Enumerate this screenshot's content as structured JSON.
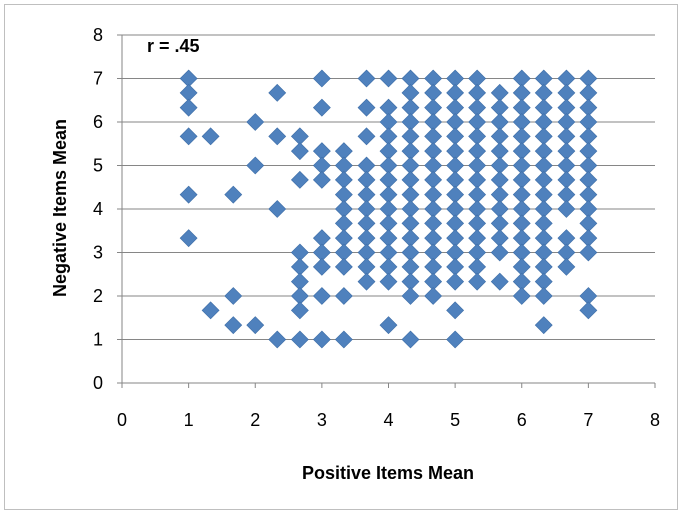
{
  "chart_data": {
    "type": "scatter",
    "title": "",
    "annotation": "r = .45",
    "xlabel": "Positive Items Mean",
    "ylabel": "Negative Items Mean",
    "xlim": [
      0,
      8
    ],
    "ylim": [
      0,
      8
    ],
    "x_ticks": [
      "0",
      "1",
      "2",
      "3",
      "4",
      "5",
      "6",
      "7",
      "8"
    ],
    "y_ticks": [
      "0",
      "1",
      "2",
      "3",
      "4",
      "5",
      "6",
      "7",
      "8"
    ],
    "grid": "horizontal",
    "legend": "none",
    "marker": "diamond",
    "colors": {
      "marker": "#4f81bd",
      "grid": "#868686",
      "axis": "#868686"
    },
    "points": [
      [
        1,
        7
      ],
      [
        1,
        6.67
      ],
      [
        1,
        6.33
      ],
      [
        1,
        5.67
      ],
      [
        1,
        4.33
      ],
      [
        1,
        3.33
      ],
      [
        1.33,
        5.67
      ],
      [
        1.33,
        1.67
      ],
      [
        1.67,
        4.33
      ],
      [
        1.67,
        2
      ],
      [
        1.67,
        1.33
      ],
      [
        2,
        6
      ],
      [
        2,
        5
      ],
      [
        2,
        1.33
      ],
      [
        2.33,
        6.67
      ],
      [
        2.33,
        5.67
      ],
      [
        2.33,
        4
      ],
      [
        2.33,
        1
      ],
      [
        2.67,
        5.67
      ],
      [
        2.67,
        5.33
      ],
      [
        2.67,
        4.67
      ],
      [
        2.67,
        3
      ],
      [
        2.67,
        2.67
      ],
      [
        2.67,
        2.33
      ],
      [
        2.67,
        2
      ],
      [
        2.67,
        1.67
      ],
      [
        2.67,
        1
      ],
      [
        3,
        7
      ],
      [
        3,
        6.33
      ],
      [
        3,
        5.33
      ],
      [
        3,
        5
      ],
      [
        3,
        4.67
      ],
      [
        3,
        3.33
      ],
      [
        3,
        3
      ],
      [
        3,
        2.67
      ],
      [
        3,
        2
      ],
      [
        3,
        1
      ],
      [
        3.33,
        5.33
      ],
      [
        3.33,
        5
      ],
      [
        3.33,
        4.67
      ],
      [
        3.33,
        4.33
      ],
      [
        3.33,
        4
      ],
      [
        3.33,
        3.67
      ],
      [
        3.33,
        3.33
      ],
      [
        3.33,
        3
      ],
      [
        3.33,
        2.67
      ],
      [
        3.33,
        2
      ],
      [
        3.33,
        1
      ],
      [
        3.67,
        7
      ],
      [
        3.67,
        6.33
      ],
      [
        3.67,
        5.67
      ],
      [
        3.67,
        5
      ],
      [
        3.67,
        4.67
      ],
      [
        3.67,
        4.33
      ],
      [
        3.67,
        4
      ],
      [
        3.67,
        3.67
      ],
      [
        3.67,
        3.33
      ],
      [
        3.67,
        3
      ],
      [
        3.67,
        2.67
      ],
      [
        3.67,
        2.33
      ],
      [
        4,
        7
      ],
      [
        4,
        6.33
      ],
      [
        4,
        6
      ],
      [
        4,
        5.67
      ],
      [
        4,
        5.33
      ],
      [
        4,
        5
      ],
      [
        4,
        4.67
      ],
      [
        4,
        4.33
      ],
      [
        4,
        4
      ],
      [
        4,
        3.67
      ],
      [
        4,
        3.33
      ],
      [
        4,
        3
      ],
      [
        4,
        2.67
      ],
      [
        4,
        2.33
      ],
      [
        4,
        1.33
      ],
      [
        4.33,
        7
      ],
      [
        4.33,
        6.67
      ],
      [
        4.33,
        6.33
      ],
      [
        4.33,
        6
      ],
      [
        4.33,
        5.67
      ],
      [
        4.33,
        5.33
      ],
      [
        4.33,
        5
      ],
      [
        4.33,
        4.67
      ],
      [
        4.33,
        4.33
      ],
      [
        4.33,
        4
      ],
      [
        4.33,
        3.67
      ],
      [
        4.33,
        3.33
      ],
      [
        4.33,
        3
      ],
      [
        4.33,
        2.67
      ],
      [
        4.33,
        2.33
      ],
      [
        4.33,
        2
      ],
      [
        4.33,
        1
      ],
      [
        4.67,
        7
      ],
      [
        4.67,
        6.67
      ],
      [
        4.67,
        6.33
      ],
      [
        4.67,
        6
      ],
      [
        4.67,
        5.67
      ],
      [
        4.67,
        5.33
      ],
      [
        4.67,
        5
      ],
      [
        4.67,
        4.67
      ],
      [
        4.67,
        4.33
      ],
      [
        4.67,
        4
      ],
      [
        4.67,
        3.67
      ],
      [
        4.67,
        3.33
      ],
      [
        4.67,
        3
      ],
      [
        4.67,
        2.67
      ],
      [
        4.67,
        2.33
      ],
      [
        4.67,
        2
      ],
      [
        5,
        7
      ],
      [
        5,
        6.67
      ],
      [
        5,
        6.33
      ],
      [
        5,
        6
      ],
      [
        5,
        5.67
      ],
      [
        5,
        5.33
      ],
      [
        5,
        5
      ],
      [
        5,
        4.67
      ],
      [
        5,
        4.33
      ],
      [
        5,
        4
      ],
      [
        5,
        3.67
      ],
      [
        5,
        3.33
      ],
      [
        5,
        3
      ],
      [
        5,
        2.67
      ],
      [
        5,
        2.33
      ],
      [
        5,
        1.67
      ],
      [
        5,
        1
      ],
      [
        5.33,
        7
      ],
      [
        5.33,
        6.67
      ],
      [
        5.33,
        6.33
      ],
      [
        5.33,
        6
      ],
      [
        5.33,
        5.67
      ],
      [
        5.33,
        5.33
      ],
      [
        5.33,
        5
      ],
      [
        5.33,
        4.67
      ],
      [
        5.33,
        4.33
      ],
      [
        5.33,
        4
      ],
      [
        5.33,
        3.67
      ],
      [
        5.33,
        3.33
      ],
      [
        5.33,
        3
      ],
      [
        5.33,
        2.67
      ],
      [
        5.33,
        2.33
      ],
      [
        5.67,
        6.67
      ],
      [
        5.67,
        6.33
      ],
      [
        5.67,
        6
      ],
      [
        5.67,
        5.67
      ],
      [
        5.67,
        5.33
      ],
      [
        5.67,
        5
      ],
      [
        5.67,
        4.67
      ],
      [
        5.67,
        4.33
      ],
      [
        5.67,
        4
      ],
      [
        5.67,
        3.67
      ],
      [
        5.67,
        3.33
      ],
      [
        5.67,
        3
      ],
      [
        5.67,
        2.33
      ],
      [
        6,
        7
      ],
      [
        6,
        6.67
      ],
      [
        6,
        6.33
      ],
      [
        6,
        6
      ],
      [
        6,
        5.67
      ],
      [
        6,
        5.33
      ],
      [
        6,
        5
      ],
      [
        6,
        4.67
      ],
      [
        6,
        4.33
      ],
      [
        6,
        4
      ],
      [
        6,
        3.67
      ],
      [
        6,
        3.33
      ],
      [
        6,
        3
      ],
      [
        6,
        2.67
      ],
      [
        6,
        2.33
      ],
      [
        6,
        2
      ],
      [
        6.33,
        7
      ],
      [
        6.33,
        6.67
      ],
      [
        6.33,
        6.33
      ],
      [
        6.33,
        6
      ],
      [
        6.33,
        5.67
      ],
      [
        6.33,
        5.33
      ],
      [
        6.33,
        5
      ],
      [
        6.33,
        4.67
      ],
      [
        6.33,
        4.33
      ],
      [
        6.33,
        4
      ],
      [
        6.33,
        3.67
      ],
      [
        6.33,
        3.33
      ],
      [
        6.33,
        3
      ],
      [
        6.33,
        2.67
      ],
      [
        6.33,
        2.33
      ],
      [
        6.33,
        2
      ],
      [
        6.33,
        1.33
      ],
      [
        6.67,
        7
      ],
      [
        6.67,
        6.67
      ],
      [
        6.67,
        6.33
      ],
      [
        6.67,
        6
      ],
      [
        6.67,
        5.67
      ],
      [
        6.67,
        5.33
      ],
      [
        6.67,
        5
      ],
      [
        6.67,
        4.67
      ],
      [
        6.67,
        4.33
      ],
      [
        6.67,
        4
      ],
      [
        6.67,
        3.33
      ],
      [
        6.67,
        3
      ],
      [
        6.67,
        2.67
      ],
      [
        7,
        7
      ],
      [
        7,
        6.67
      ],
      [
        7,
        6.33
      ],
      [
        7,
        6
      ],
      [
        7,
        5.67
      ],
      [
        7,
        5.33
      ],
      [
        7,
        5
      ],
      [
        7,
        4.67
      ],
      [
        7,
        4.33
      ],
      [
        7,
        4
      ],
      [
        7,
        3.67
      ],
      [
        7,
        3.33
      ],
      [
        7,
        3
      ],
      [
        7,
        2
      ],
      [
        7,
        1.67
      ]
    ]
  }
}
